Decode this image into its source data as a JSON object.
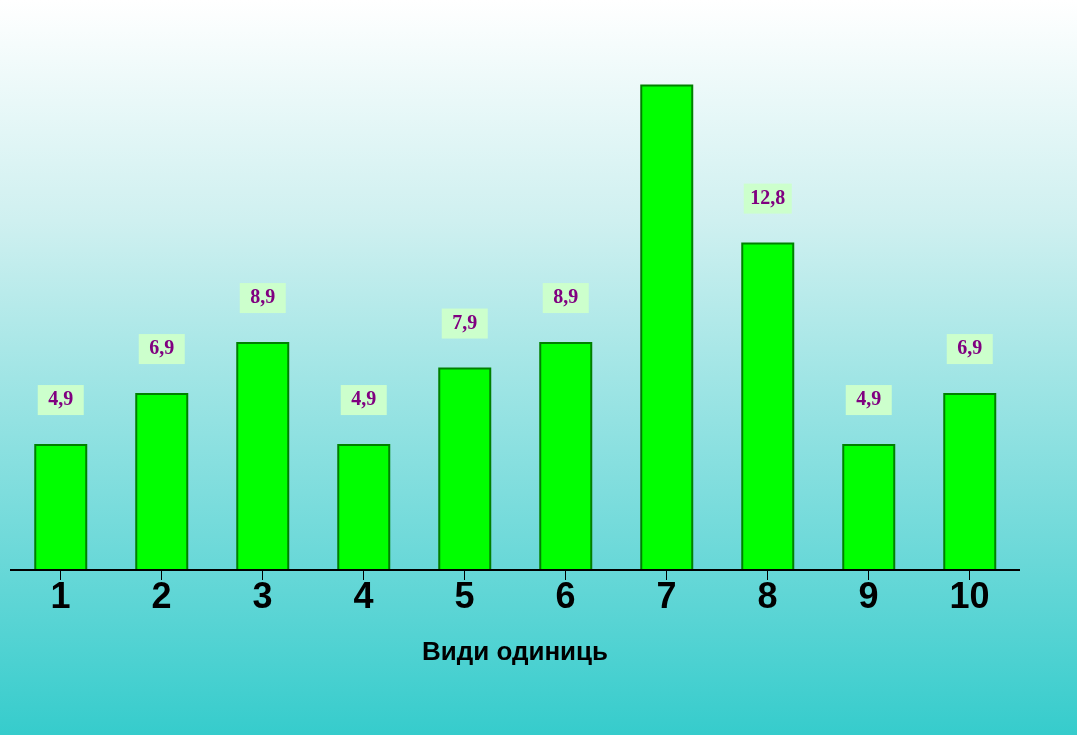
{
  "chart_data": {
    "type": "bar",
    "xlabel": "Види одиниць",
    "categories": [
      "1",
      "2",
      "3",
      "4",
      "5",
      "6",
      "7",
      "8",
      "9",
      "10"
    ],
    "values": [
      4.9,
      6.9,
      8.9,
      4.9,
      7.9,
      8.9,
      19,
      12.8,
      4.9,
      6.9
    ],
    "value_labels": [
      "4,9",
      "6,9",
      "8,9",
      "4,9",
      "7,9",
      "8,9",
      null,
      "12,8",
      "4,9",
      "6,9"
    ],
    "color": "#00ff00",
    "grid": false,
    "legend": false
  }
}
